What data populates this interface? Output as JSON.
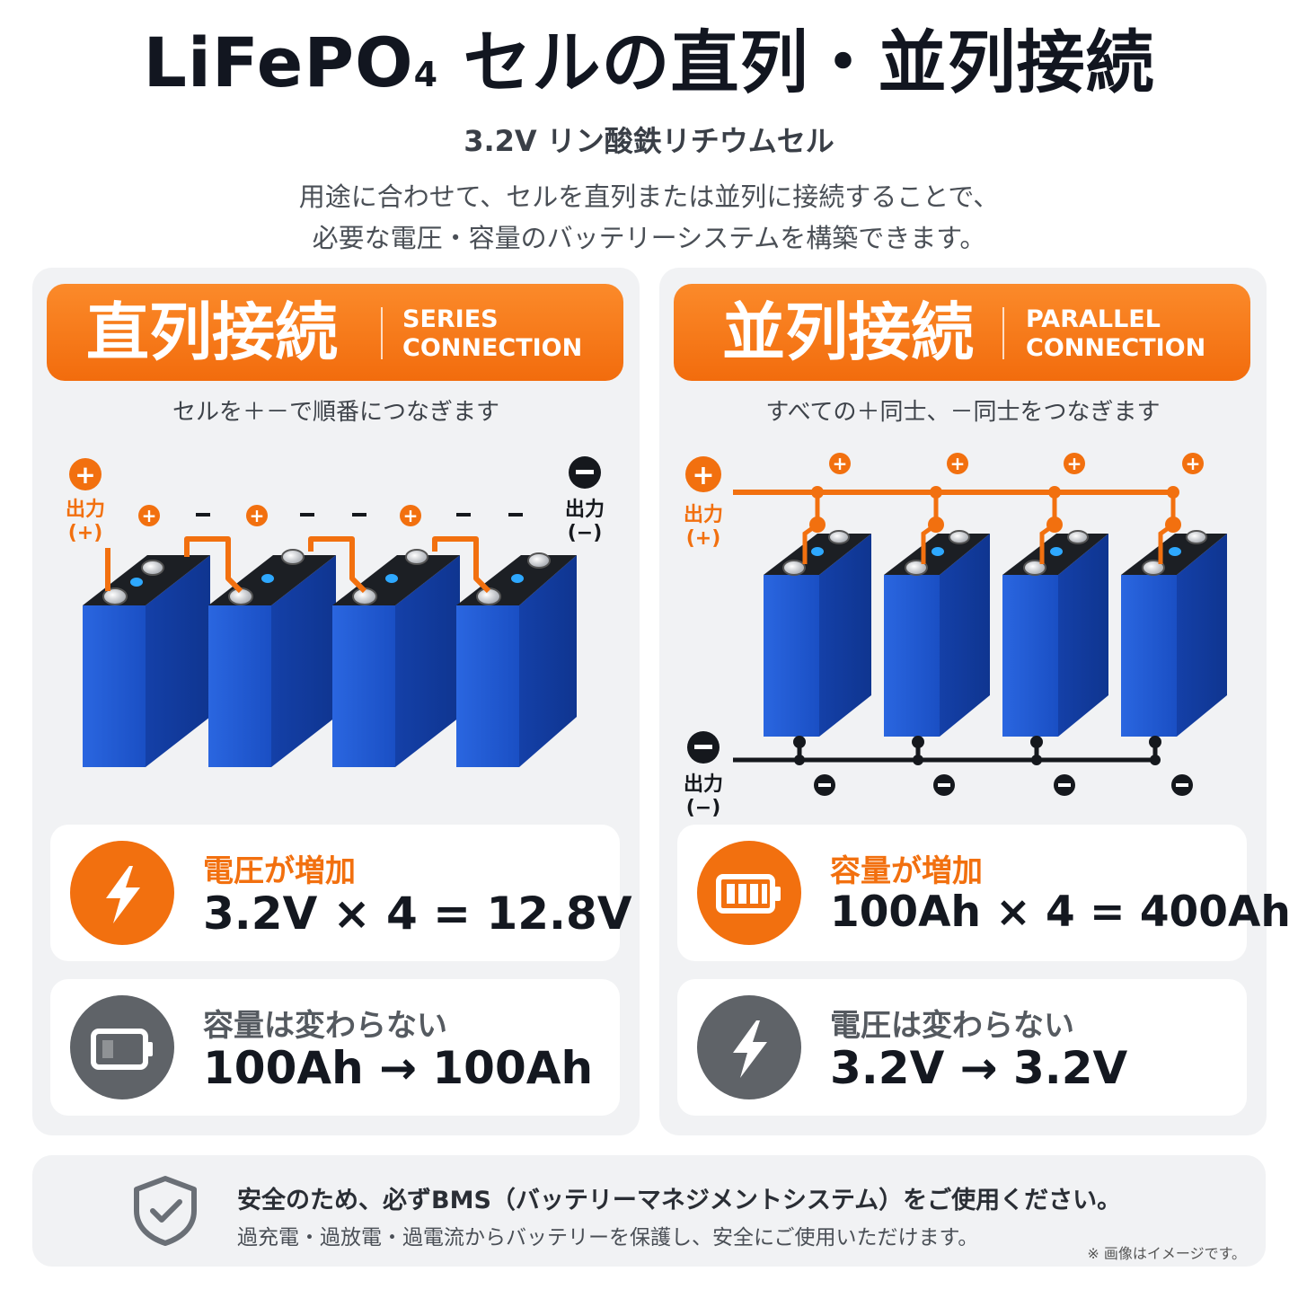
{
  "title": {
    "main": "LiFePO",
    "sub": "4",
    "rest": " セルの直列・並列接続"
  },
  "subtitle": "3.2V リン酸鉄リチウムセル",
  "intro": {
    "line1": "用途に合わせて、セルを直列または並列に接続することで、",
    "line2": "必要な電圧・容量のバッテリーシステムを構築できます。"
  },
  "series": {
    "title_jp": "直列接続",
    "title_en_1": "SERIES",
    "title_en_2": "CONNECTION",
    "caption": "セルを＋－で順番につなぎます",
    "output_plus": "出力",
    "output_plus_sign": "(+)",
    "output_minus": "出力",
    "output_minus_sign": "(−)",
    "terminal_plus": "+",
    "terminal_minus": "−",
    "card1_label": "電圧が増加",
    "card1_value": "3.2V × 4 = 12.8V",
    "card2_label": "容量は変わらない",
    "card2_value": "100Ah → 100Ah"
  },
  "parallel": {
    "title_jp": "並列接続",
    "title_en_1": "PARALLEL",
    "title_en_2": "CONNECTION",
    "caption": "すべての＋同士、－同士をつなぎます",
    "output_plus": "出力",
    "output_plus_sign": "(+)",
    "output_minus": "出力",
    "output_minus_sign": "(−)",
    "terminal_plus": "+",
    "terminal_minus": "−",
    "card1_label": "容量が増加",
    "card1_value": "100Ah × 4 = 400Ah",
    "card2_label": "電圧は変わらない",
    "card2_value": "3.2V → 3.2V"
  },
  "safety": {
    "main": "安全のため、必ずBMS（バッテリーマネジメントシステム）をご使用ください。",
    "sub": "過充電・過放電・過電流からバッテリーを保護し、安全にご使用いただけます。",
    "note": "※ 画像はイメージです。"
  },
  "colors": {
    "accent_orange": "#f2700f",
    "cell_blue": "#1f56c8",
    "icon_gray": "#5f6368"
  },
  "icons": [
    "lightning-icon",
    "battery-icon",
    "shield-check-icon"
  ]
}
